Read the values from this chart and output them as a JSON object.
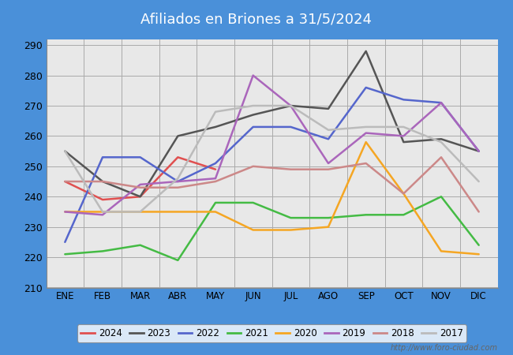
{
  "title": "Afiliados en Briones a 31/5/2024",
  "title_bg": "#4a90d9",
  "title_color": "white",
  "months": [
    "ENE",
    "FEB",
    "MAR",
    "ABR",
    "MAY",
    "JUN",
    "JUL",
    "AGO",
    "SEP",
    "OCT",
    "NOV",
    "DIC"
  ],
  "ylim": [
    210,
    292
  ],
  "yticks": [
    210,
    220,
    230,
    240,
    250,
    260,
    270,
    280,
    290
  ],
  "series": {
    "2024": {
      "color": "#e05050",
      "values": [
        245,
        239,
        240,
        253,
        249,
        null,
        null,
        null,
        null,
        null,
        null,
        null
      ]
    },
    "2023": {
      "color": "#555555",
      "values": [
        255,
        245,
        240,
        260,
        263,
        267,
        270,
        269,
        288,
        258,
        259,
        255
      ]
    },
    "2022": {
      "color": "#5566cc",
      "values": [
        225,
        253,
        253,
        245,
        251,
        263,
        263,
        259,
        276,
        272,
        271,
        255
      ]
    },
    "2021": {
      "color": "#44bb44",
      "values": [
        221,
        222,
        224,
        219,
        238,
        238,
        233,
        233,
        234,
        234,
        240,
        224
      ]
    },
    "2020": {
      "color": "#f5a623",
      "values": [
        235,
        235,
        235,
        235,
        235,
        229,
        229,
        230,
        258,
        241,
        222,
        221
      ]
    },
    "2019": {
      "color": "#aa66bb",
      "values": [
        235,
        234,
        244,
        245,
        246,
        280,
        270,
        251,
        261,
        260,
        271,
        255
      ]
    },
    "2018": {
      "color": "#cc8888",
      "values": [
        245,
        245,
        243,
        243,
        245,
        250,
        249,
        249,
        251,
        241,
        253,
        235
      ]
    },
    "2017": {
      "color": "#bbbbbb",
      "values": [
        255,
        235,
        235,
        246,
        268,
        270,
        270,
        262,
        263,
        263,
        258,
        245
      ]
    }
  },
  "watermark": "http://www.foro-ciudad.com",
  "plot_bg": "#e8e8e8",
  "fig_bg": "#4a90d9"
}
